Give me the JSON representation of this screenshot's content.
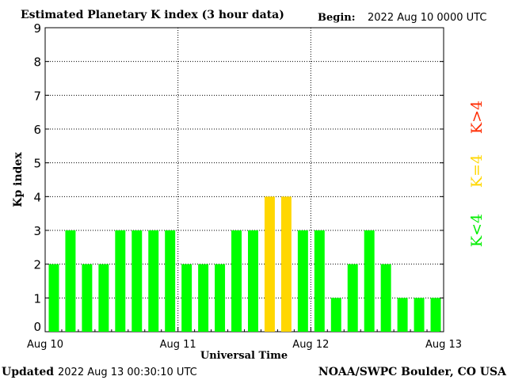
{
  "header": {
    "title": "Estimated Planetary K index (3 hour data)",
    "begin_label": "Begin:",
    "begin_value": "2022 Aug 10 0000 UTC"
  },
  "footer": {
    "updated_label": "Updated",
    "updated_value": "2022 Aug 13 00:30:10 UTC",
    "source": "NOAA/SWPC Boulder, CO USA"
  },
  "colors": {
    "low": "#00ff00",
    "medium": "#ffd700",
    "high": "#ff2a00",
    "grid": "#000000"
  },
  "legend": {
    "low": "K<4",
    "medium": "K=4",
    "high": "K>4"
  },
  "chart_data": {
    "type": "bar",
    "xlabel": "Universal Time",
    "ylabel": "Kp index",
    "ylim": [
      0,
      9
    ],
    "yticks": [
      0,
      1,
      2,
      3,
      4,
      5,
      6,
      7,
      8,
      9
    ],
    "x_tick_labels": [
      "Aug 10",
      "Aug 11",
      "Aug 12",
      "Aug 13"
    ],
    "grid": true,
    "bar_interval_hours": 3,
    "values": [
      2,
      3,
      2,
      2,
      3,
      3,
      3,
      3,
      2,
      2,
      2,
      3,
      3,
      4,
      4,
      3,
      3,
      1,
      2,
      3,
      2,
      1,
      1,
      1
    ]
  }
}
